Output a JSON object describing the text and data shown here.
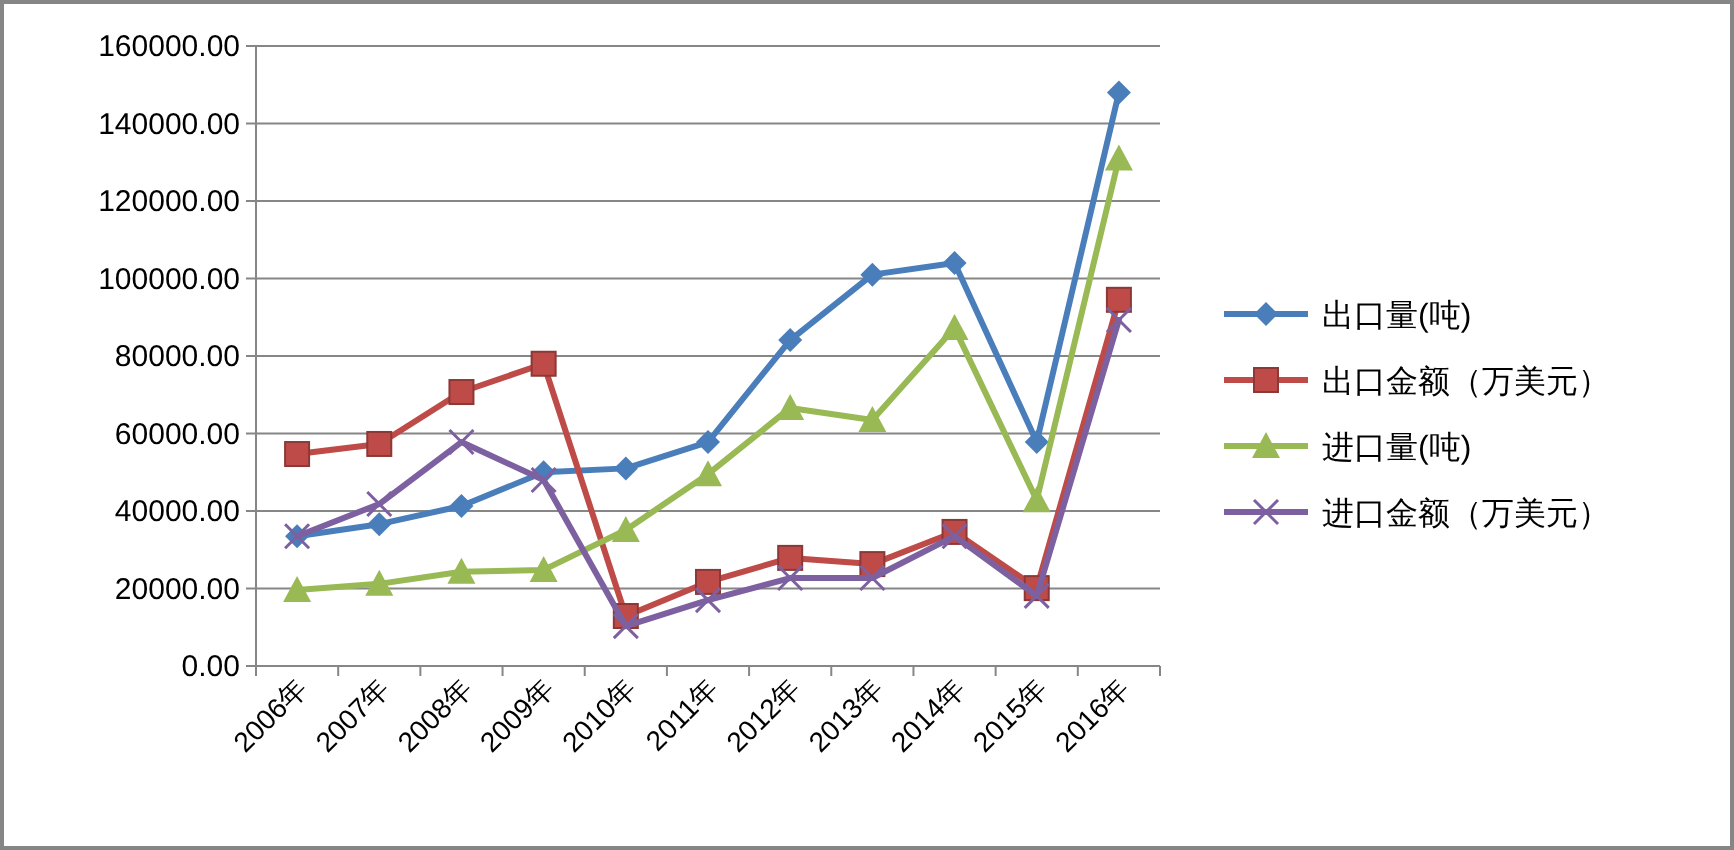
{
  "chart_data": {
    "type": "line",
    "categories": [
      "2006年",
      "2007年",
      "2008年",
      "2009年",
      "2010年",
      "2011年",
      "2012年",
      "2013年",
      "2014年",
      "2015年",
      "2016年"
    ],
    "series": [
      {
        "name": "出口量(吨)",
        "color": "#4a7ebb",
        "marker": "diamond",
        "values": [
          33500,
          36600,
          41300,
          50000,
          51000,
          57800,
          84100,
          101000,
          104000,
          57800,
          148000
        ]
      },
      {
        "name": "出口金额（万美元）",
        "color": "#be4b48",
        "marker": "square",
        "values": [
          54700,
          57300,
          70700,
          78000,
          12900,
          21700,
          27900,
          26300,
          34600,
          20100,
          94500
        ]
      },
      {
        "name": "进口量(吨)",
        "color": "#98b954",
        "marker": "triangle",
        "values": [
          19600,
          21200,
          24300,
          24800,
          35100,
          49500,
          66600,
          63500,
          87200,
          42800,
          131000
        ]
      },
      {
        "name": "进口金额（万美元）",
        "color": "#7d60a0",
        "marker": "cross",
        "values": [
          33500,
          41800,
          57800,
          48000,
          10300,
          17000,
          22700,
          22700,
          33500,
          18100,
          89300
        ]
      }
    ],
    "ylim": [
      0,
      160000
    ],
    "yticks": [
      {
        "value": 0,
        "label": "0.00"
      },
      {
        "value": 20000,
        "label": "20000.00"
      },
      {
        "value": 40000,
        "label": "40000.00"
      },
      {
        "value": 60000,
        "label": "60000.00"
      },
      {
        "value": 80000,
        "label": "80000.00"
      },
      {
        "value": 100000,
        "label": "100000.00"
      },
      {
        "value": 120000,
        "label": "120000.00"
      },
      {
        "value": 140000,
        "label": "140000.00"
      },
      {
        "value": 160000,
        "label": "160000.00"
      }
    ],
    "grid": "y",
    "legend": "right"
  }
}
